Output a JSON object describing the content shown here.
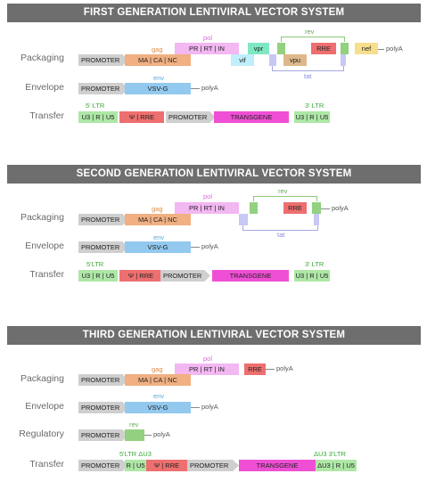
{
  "headers": {
    "first": "FIRST GENERATION LENTIVIRAL VECTOR SYSTEM",
    "second": "SECOND GENERATION LENTIVIRAL VECTOR SYSTEM",
    "third": "THIRD GENERATION LENTIVIRAL VECTOR SYSTEM"
  },
  "labels": {
    "packaging": "Packaging",
    "envelope": "Envelope",
    "transfer": "Transfer",
    "regulatory": "Regulatory"
  },
  "elements": {
    "promoter": "PROMOTER",
    "gag": "gag",
    "gag_parts": "MA  | CA  |  NC",
    "pol": "pol",
    "pol_parts": "PR  |  RT  |  IN",
    "env": "env",
    "vsvg": "VSV-G",
    "polyA": "polyA",
    "rev": "rev",
    "rre": "RRE",
    "tat": "tat",
    "vif": "vif",
    "vpr": "vpr",
    "vpu": "vpu",
    "nef": "nef",
    "ltr5": "5' LTR",
    "ltr3": "3' LTR",
    "ltr5_g2": "5'LTR",
    "ltr5_g3": "5'LTR ΔU3",
    "ltr3_g3": "ΔU3 3'LTR",
    "u3rus": "U3 | R | U5",
    "rus": "R | U5",
    "du3rus": "ΔU3 | R | U5",
    "psi_rre": "Ψ  |  RRE",
    "transgene": "TRANSGENE"
  },
  "colors": {
    "header_bg": "#6e6e6e",
    "promoter": "#cfcfcf",
    "gag": "#f0b082",
    "pol": "#f3b7f2",
    "env": "#93c9ee",
    "ltr": "#aee7a6",
    "rre": "#ee6f6f",
    "transgene": "#ef4fd5",
    "rev": "#93d07f",
    "tat": "#c8c8f4"
  }
}
